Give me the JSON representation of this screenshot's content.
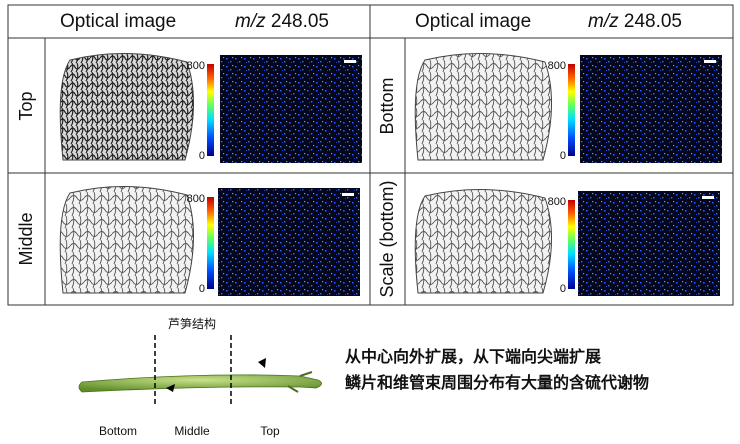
{
  "header": {
    "left": {
      "optical": "Optical image",
      "mz_label": "m/z",
      "mz_value": "248.05"
    },
    "right": {
      "optical": "Optical image",
      "mz_label": "m/z",
      "mz_value": "248.05"
    }
  },
  "rows": {
    "left": [
      {
        "label": "Top",
        "scale_max": 800,
        "scale_min": 0
      },
      {
        "label": "Middle",
        "scale_max": 800,
        "scale_min": 0
      }
    ],
    "right": [
      {
        "label": "Bottom",
        "scale_max": 800,
        "scale_min": 0
      },
      {
        "label": "Scale (bottom)",
        "scale_max": 800,
        "scale_min": 0
      }
    ]
  },
  "asparagus": {
    "title": "芦笋结构",
    "sections": [
      "Bottom",
      "Middle",
      "Top"
    ]
  },
  "description": [
    "从中心向外扩展，从下端向尖端扩展",
    "鳞片和维管束周围分布有大量的含硫代谢物"
  ]
}
